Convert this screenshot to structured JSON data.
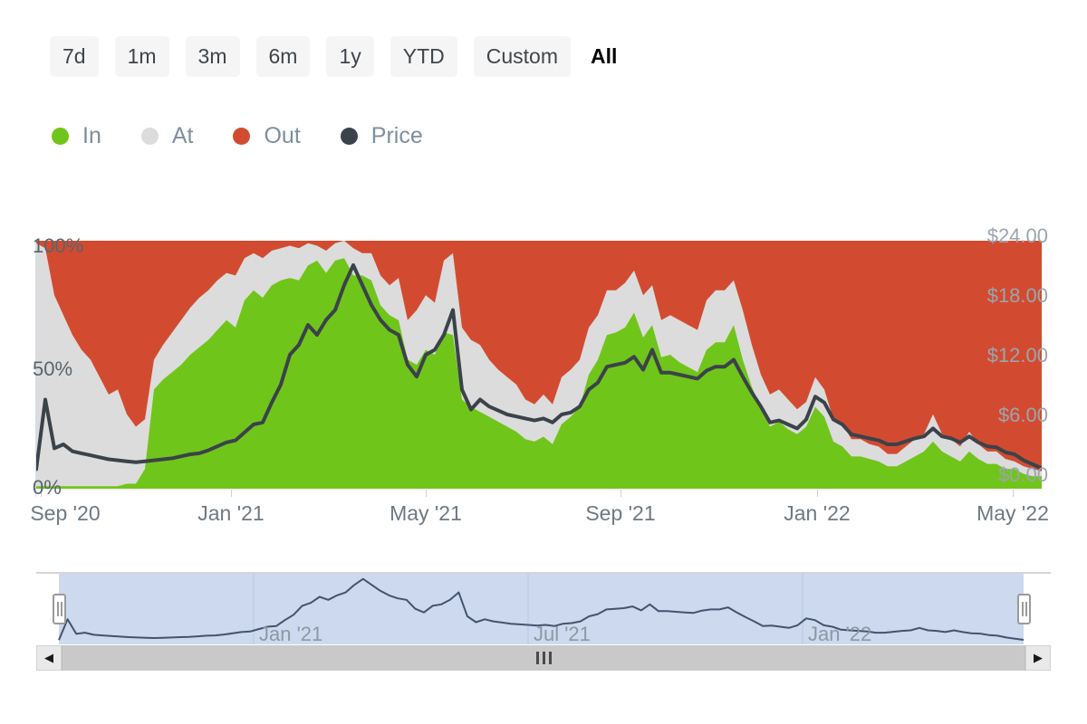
{
  "toolbar": {
    "buttons": [
      {
        "label": "7d",
        "selected": false
      },
      {
        "label": "1m",
        "selected": false
      },
      {
        "label": "3m",
        "selected": false
      },
      {
        "label": "6m",
        "selected": false
      },
      {
        "label": "1y",
        "selected": false
      },
      {
        "label": "YTD",
        "selected": false
      },
      {
        "label": "Custom",
        "selected": false
      },
      {
        "label": "All",
        "selected": true
      }
    ]
  },
  "legend": {
    "items": [
      {
        "label": "In",
        "color": "#70c51a"
      },
      {
        "label": "At",
        "color": "#dcdcdc"
      },
      {
        "label": "Out",
        "color": "#d24b30"
      },
      {
        "label": "Price",
        "color": "#3b424a"
      }
    ]
  },
  "chart_data": {
    "type": "stacked-area-percent+line",
    "description": "Share of addresses In/At/Out of the money (stacked to 100%) with price overlay, sampled ~weekly Sep '20 - May '22",
    "x_tick_labels": [
      "Sep '20",
      "Jan '21",
      "May '21",
      "Sep '21",
      "Jan '22",
      "May '22"
    ],
    "y_left": {
      "ticks_top_to_bottom": [
        "100%",
        "50%",
        "0%"
      ],
      "range": [
        0,
        100
      ],
      "unit": "%"
    },
    "y_right": {
      "ticks_top_to_bottom": [
        "$24.00",
        "$18.00",
        "$12.00",
        "$6.00",
        "$0.00"
      ],
      "range": [
        0,
        24
      ],
      "unit": "USD"
    },
    "colors": {
      "in": "#70c51a",
      "at": "#dcdcdc",
      "out": "#d24b30",
      "price": "#3b424a"
    },
    "series": [
      {
        "name": "In",
        "unit": "%",
        "values": [
          1,
          1,
          1,
          1,
          1,
          1,
          1,
          1,
          1,
          1,
          2,
          2,
          8,
          40,
          44,
          47,
          50,
          54,
          57,
          60,
          64,
          68,
          65,
          76,
          80,
          77,
          82,
          84,
          85,
          84,
          90,
          92,
          87,
          92,
          93,
          86,
          86,
          84,
          74,
          70,
          68,
          52,
          50,
          56,
          54,
          63,
          62,
          36,
          33,
          31,
          29,
          27,
          25,
          23,
          20,
          19,
          21,
          18,
          26,
          29,
          33,
          46,
          52,
          62,
          63,
          65,
          71,
          61,
          66,
          53,
          54,
          51,
          49,
          47,
          56,
          59,
          59,
          66,
          52,
          41,
          33,
          25,
          27,
          24,
          22,
          25,
          33,
          29,
          19,
          17,
          13,
          13,
          12,
          11,
          9,
          9,
          11,
          13,
          15,
          19,
          15,
          13,
          11,
          15,
          12,
          10,
          10,
          8,
          8,
          6,
          5,
          5
        ]
      },
      {
        "name": "At",
        "unit": "%",
        "values": [
          98,
          96,
          77,
          69,
          61,
          55,
          51,
          44,
          37,
          39,
          28,
          23,
          20,
          12,
          14,
          16,
          18,
          19,
          20,
          20,
          20,
          19,
          21,
          17,
          15,
          16,
          14,
          13,
          13,
          13,
          9,
          6,
          9,
          7,
          7,
          11,
          9,
          11,
          12,
          12,
          17,
          16,
          22,
          22,
          21,
          29,
          33,
          29,
          27,
          27,
          23,
          21,
          20,
          19,
          16,
          15,
          17,
          16,
          19,
          19,
          19,
          19,
          18,
          18,
          17,
          18,
          17,
          17,
          16,
          15,
          16,
          17,
          17,
          17,
          20,
          21,
          21,
          18,
          20,
          17,
          13,
          13,
          13,
          12,
          10,
          10,
          12,
          11,
          9,
          9,
          7,
          7,
          6,
          6,
          5,
          5,
          6,
          7,
          7,
          11,
          7,
          7,
          6,
          8,
          6,
          5,
          5,
          4,
          3,
          3,
          3,
          2
        ]
      },
      {
        "name": "Out",
        "unit": "%",
        "note": "remainder to 100%"
      },
      {
        "name": "Price",
        "unit": "USD",
        "values": [
          0.5,
          7.5,
          2.6,
          3.0,
          2.3,
          2.1,
          1.9,
          1.7,
          1.5,
          1.4,
          1.3,
          1.2,
          1.3,
          1.4,
          1.5,
          1.6,
          1.8,
          2.0,
          2.1,
          2.4,
          2.8,
          3.2,
          3.4,
          4.2,
          5.0,
          5.2,
          7.2,
          9.0,
          12.0,
          13.0,
          15.0,
          14.0,
          15.5,
          16.5,
          19.0,
          21.0,
          19.0,
          17.0,
          15.5,
          14.5,
          14.0,
          11.0,
          9.8,
          12.0,
          12.5,
          14.0,
          16.5,
          8.5,
          6.5,
          7.5,
          6.8,
          6.4,
          6.0,
          5.8,
          5.6,
          5.4,
          5.6,
          5.2,
          6.0,
          6.2,
          6.8,
          8.5,
          9.2,
          10.8,
          11.0,
          11.2,
          11.8,
          10.5,
          12.5,
          10.2,
          10.2,
          10.0,
          9.8,
          9.6,
          10.4,
          10.8,
          10.8,
          11.5,
          9.8,
          8.2,
          6.8,
          5.2,
          5.4,
          5.0,
          4.6,
          5.5,
          7.8,
          7.2,
          5.5,
          5.0,
          4.0,
          3.8,
          3.6,
          3.4,
          3.0,
          3.0,
          3.3,
          3.6,
          3.8,
          4.6,
          3.8,
          3.6,
          3.2,
          3.8,
          3.2,
          2.8,
          2.7,
          2.2,
          2.0,
          1.4,
          1.0,
          0.6
        ]
      }
    ]
  },
  "navigator": {
    "x_labels": [
      "Jan '21",
      "Jul '21",
      "Jan '22"
    ],
    "colors": {
      "selected_fill": "#ccd9ef",
      "line": "#44536e",
      "gridline": "#b8c6e0"
    }
  },
  "scrollbar": {
    "icons": {
      "left_arrow": "◀",
      "right_arrow": "▶"
    }
  }
}
